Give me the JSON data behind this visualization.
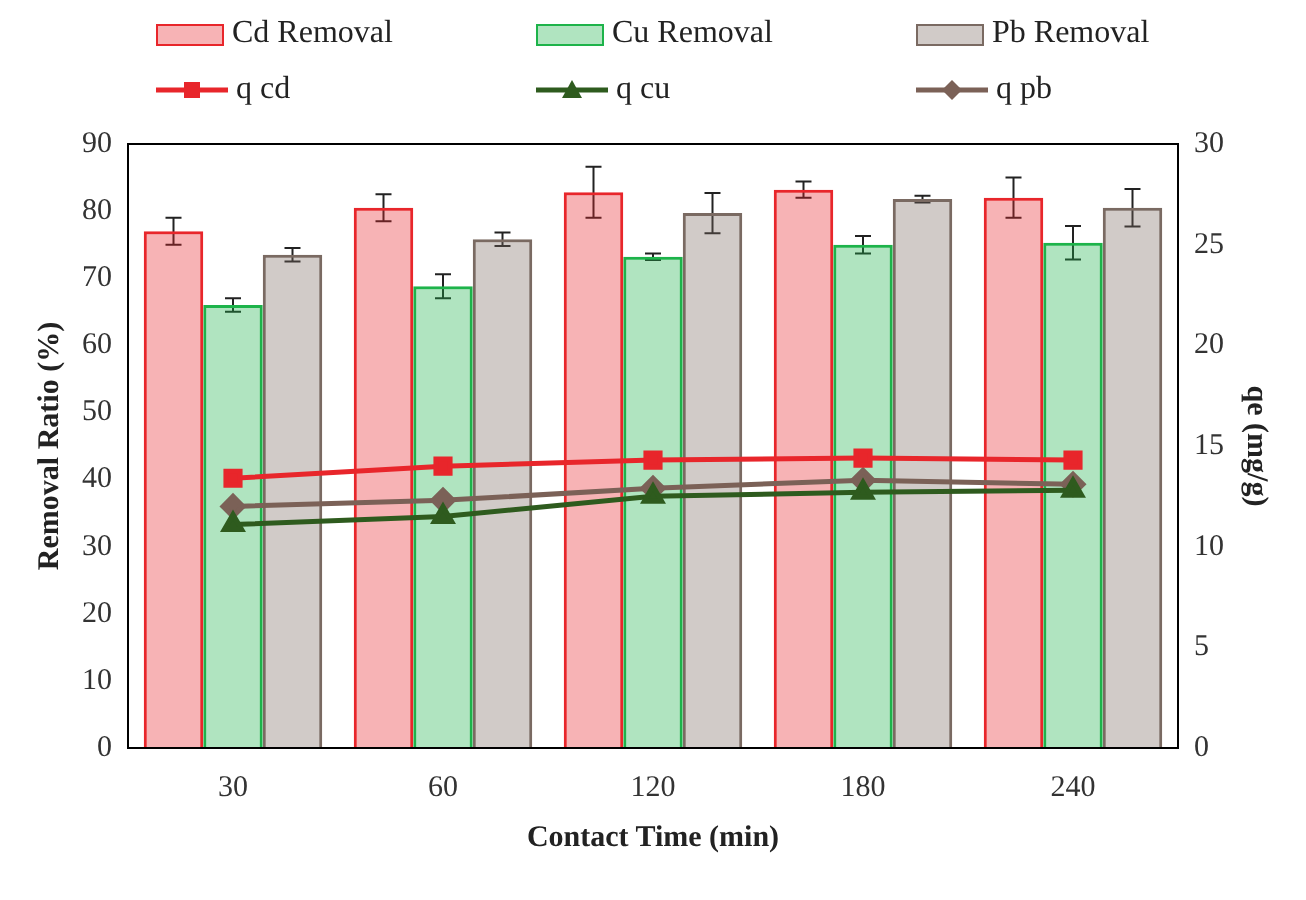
{
  "chart_data": {
    "type": "bar",
    "xlabel": "Contact Time (min)",
    "ylabel": "Removal Ratio (%)",
    "y2label": "qe (mg/g)",
    "categories": [
      "30",
      "60",
      "120",
      "180",
      "240"
    ],
    "series": [
      {
        "name": "Cd Removal",
        "color": "#e8262b",
        "values": [
          77,
          80.5,
          82.8,
          83.2,
          82
        ],
        "errors": [
          2,
          2,
          3.8,
          1.2,
          3
        ]
      },
      {
        "name": "Cu Removal",
        "color": "#1db34a",
        "values": [
          66,
          68.8,
          73.2,
          75,
          75.3
        ],
        "errors": [
          1,
          1.8,
          0.5,
          1.3,
          2.5
        ]
      },
      {
        "name": "Pb Removal",
        "color": "#7a6a62",
        "values": [
          73.5,
          75.8,
          79.7,
          81.8,
          80.5
        ],
        "errors": [
          1,
          1,
          3,
          0.5,
          2.8
        ]
      },
      {
        "name": "q cd",
        "type": "line",
        "axis": "y2",
        "marker": "square",
        "color": "#e8262b",
        "values": [
          13.4,
          14,
          14.3,
          14.4,
          14.3
        ]
      },
      {
        "name": "q cu",
        "type": "line",
        "axis": "y2",
        "marker": "triangle",
        "color": "#2e5b1e",
        "values": [
          11.1,
          11.5,
          12.5,
          12.7,
          12.8
        ]
      },
      {
        "name": "q pb",
        "type": "line",
        "axis": "y2",
        "marker": "diamond",
        "color": "#7b6157",
        "values": [
          12,
          12.3,
          12.9,
          13.3,
          13.1
        ]
      }
    ],
    "ylim": [
      0,
      90
    ],
    "yticks": [
      0,
      10,
      20,
      30,
      40,
      50,
      60,
      70,
      80,
      90
    ],
    "y2lim": [
      0,
      30
    ],
    "y2ticks": [
      0,
      5,
      10,
      15,
      20,
      25,
      30
    ],
    "grid": false,
    "legend": "top"
  }
}
